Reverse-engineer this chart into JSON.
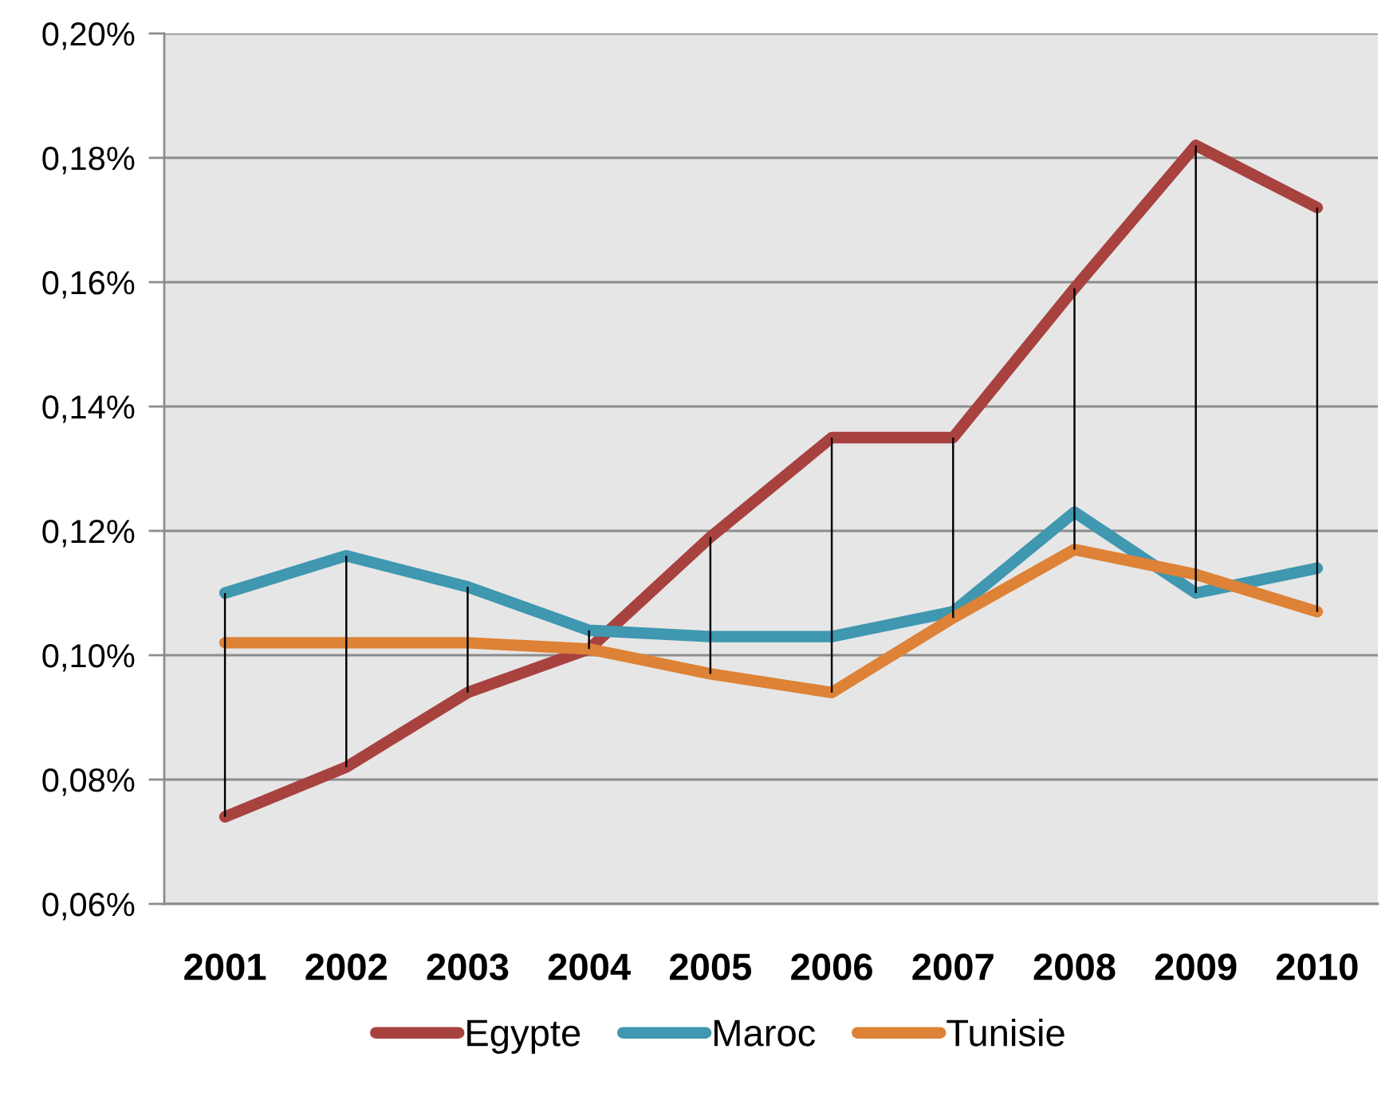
{
  "chart_data": {
    "type": "line",
    "categories": [
      "2001",
      "2002",
      "2003",
      "2004",
      "2005",
      "2006",
      "2007",
      "2008",
      "2009",
      "2010"
    ],
    "series": [
      {
        "name": "Egypte",
        "color": "#a8423f",
        "values": [
          0.074,
          0.082,
          0.094,
          0.101,
          0.119,
          0.135,
          0.135,
          0.159,
          0.182,
          0.172
        ]
      },
      {
        "name": "Maroc",
        "color": "#3f97b0",
        "values": [
          0.11,
          0.116,
          0.111,
          0.104,
          0.103,
          0.103,
          0.107,
          0.123,
          0.11,
          0.114
        ]
      },
      {
        "name": "Tunisie",
        "color": "#dd8236",
        "values": [
          0.102,
          0.102,
          0.102,
          0.101,
          0.097,
          0.094,
          0.106,
          0.117,
          0.113,
          0.107
        ]
      },
      {
        "type": "bar",
        "color": "#000000",
        "base": [
          0.074,
          0.082,
          0.094,
          0.101,
          0.097,
          0.094,
          0.106,
          0.117,
          0.11,
          0.107
        ],
        "values": [
          0.036,
          0.034,
          0.017,
          0.003,
          0.022,
          0.041,
          0.029,
          0.042,
          0.072,
          0.065
        ]
      }
    ],
    "ylim": [
      0.06,
      0.2
    ],
    "yticks": [
      {
        "value": 0.06,
        "label": "0,06%"
      },
      {
        "value": 0.08,
        "label": "0,08%"
      },
      {
        "value": 0.1,
        "label": "0,10%"
      },
      {
        "value": 0.12,
        "label": "0,12%"
      },
      {
        "value": 0.14,
        "label": "0,14%"
      },
      {
        "value": 0.16,
        "label": "0,16%"
      },
      {
        "value": 0.18,
        "label": "0,18%"
      },
      {
        "value": 0.2,
        "label": "0,20%"
      }
    ],
    "grid": "y",
    "legend": "bottom"
  }
}
